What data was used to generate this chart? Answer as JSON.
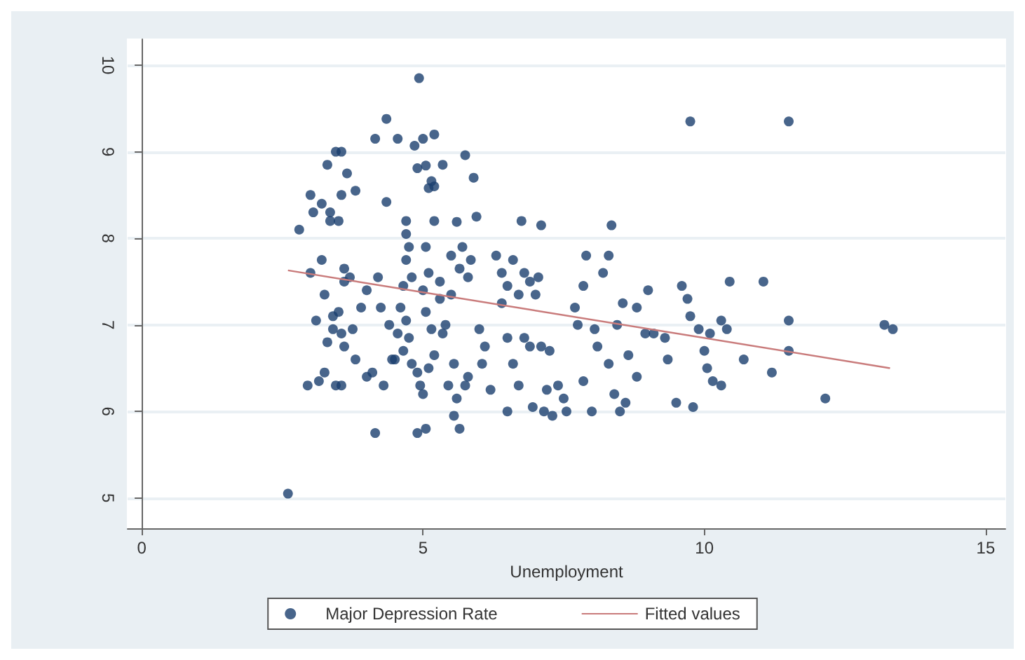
{
  "chart_data": {
    "type": "scatter",
    "xlabel": "Unemployment",
    "xlim": [
      -0.25,
      15.35
    ],
    "xticks": [
      0,
      5,
      10,
      15
    ],
    "ylim": [
      4.65,
      10.3
    ],
    "yticks": [
      5,
      6,
      7,
      8,
      9,
      10
    ],
    "grid": "y",
    "legend": "bottom",
    "series": [
      {
        "name": "Major Depression Rate",
        "type": "scatter",
        "marker": "circle",
        "color": "#1a3f6e",
        "x": [
          2.6,
          3.0,
          3.05,
          2.8,
          3.2,
          3.35,
          3.35,
          3.5,
          3.45,
          3.55,
          3.3,
          3.65,
          3.55,
          3.8,
          3.2,
          3.0,
          3.6,
          3.7,
          3.6,
          3.25,
          3.5,
          3.1,
          3.4,
          3.4,
          3.55,
          3.3,
          3.6,
          3.25,
          3.15,
          2.95,
          3.45,
          3.55,
          3.8,
          3.75,
          3.9,
          4.0,
          4.2,
          4.1,
          4.0,
          4.15,
          4.25,
          4.35,
          4.15,
          4.35,
          4.55,
          4.4,
          4.55,
          4.45,
          4.3,
          4.7,
          4.7,
          4.75,
          4.7,
          4.8,
          4.65,
          4.6,
          4.7,
          4.75,
          4.65,
          4.5,
          4.8,
          4.9,
          4.95,
          5.0,
          4.9,
          5.05,
          4.93,
          4.85,
          5.0,
          5.2,
          4.9,
          5.05,
          5.15,
          5.1,
          5.2,
          5.35,
          5.2,
          5.05,
          5.1,
          5.0,
          5.3,
          5.3,
          5.05,
          5.15,
          5.2,
          5.1,
          5.4,
          5.35,
          5.45,
          5.55,
          5.65,
          5.75,
          5.9,
          5.6,
          5.95,
          5.5,
          5.7,
          5.85,
          5.8,
          5.65,
          5.5,
          5.8,
          5.75,
          5.55,
          5.6,
          6.0,
          6.1,
          6.05,
          6.2,
          6.3,
          6.4,
          6.5,
          6.6,
          6.4,
          6.7,
          6.8,
          6.9,
          6.75,
          7.1,
          7.05,
          7.0,
          6.5,
          6.8,
          6.9,
          7.1,
          7.25,
          6.6,
          6.7,
          6.5,
          6.95,
          7.15,
          7.3,
          7.2,
          7.4,
          7.5,
          7.55,
          7.85,
          8.0,
          7.75,
          7.7,
          7.85,
          7.9,
          8.2,
          8.35,
          8.3,
          8.05,
          8.1,
          8.3,
          8.45,
          8.55,
          8.4,
          8.5,
          8.6,
          8.65,
          8.8,
          8.8,
          8.95,
          9.0,
          9.1,
          9.3,
          9.35,
          9.6,
          9.7,
          9.75,
          9.5,
          9.8,
          9.75,
          9.9,
          10.0,
          10.05,
          10.15,
          10.3,
          10.1,
          10.3,
          10.45,
          10.4,
          10.7,
          11.05,
          11.2,
          11.5,
          11.5,
          11.5,
          12.15,
          13.2,
          13.35
        ],
        "values": [
          5.05,
          8.5,
          8.3,
          8.1,
          8.4,
          8.3,
          8.2,
          8.2,
          9.0,
          9.0,
          8.85,
          8.75,
          8.5,
          8.55,
          7.75,
          7.6,
          7.65,
          7.55,
          7.5,
          7.35,
          7.15,
          7.05,
          7.1,
          6.95,
          6.9,
          6.8,
          6.75,
          6.45,
          6.35,
          6.3,
          6.3,
          6.3,
          6.6,
          6.95,
          7.2,
          7.4,
          7.55,
          6.45,
          6.4,
          5.75,
          7.2,
          8.42,
          9.15,
          9.38,
          9.15,
          7.0,
          6.9,
          6.6,
          6.3,
          8.2,
          8.05,
          7.9,
          7.75,
          7.55,
          7.45,
          7.2,
          7.05,
          6.85,
          6.7,
          6.6,
          6.55,
          6.45,
          6.3,
          6.2,
          5.75,
          5.8,
          9.85,
          9.07,
          9.15,
          9.2,
          8.81,
          8.84,
          8.66,
          8.58,
          8.6,
          8.85,
          8.2,
          7.9,
          7.6,
          7.4,
          7.5,
          7.3,
          7.15,
          6.95,
          6.65,
          6.5,
          7.0,
          6.9,
          6.3,
          5.95,
          5.8,
          8.96,
          8.7,
          8.19,
          8.25,
          7.8,
          7.9,
          7.75,
          7.55,
          7.65,
          7.35,
          6.4,
          6.3,
          6.55,
          6.15,
          6.95,
          6.75,
          6.55,
          6.25,
          7.8,
          7.6,
          7.45,
          7.75,
          7.25,
          7.35,
          7.6,
          7.5,
          8.2,
          8.15,
          7.55,
          7.35,
          6.85,
          6.85,
          6.75,
          6.75,
          6.7,
          6.55,
          6.3,
          6.0,
          6.05,
          6.0,
          5.95,
          6.25,
          6.3,
          6.15,
          6.0,
          6.35,
          6.0,
          7.0,
          7.2,
          7.45,
          7.8,
          7.6,
          8.15,
          7.8,
          6.95,
          6.75,
          6.55,
          7.0,
          7.25,
          6.2,
          6.0,
          6.1,
          6.65,
          6.4,
          7.2,
          6.9,
          7.4,
          6.9,
          6.85,
          6.6,
          7.45,
          7.3,
          7.1,
          6.1,
          6.05,
          9.35,
          6.95,
          6.7,
          6.5,
          6.35,
          6.3,
          6.9,
          7.05,
          7.5,
          6.95,
          6.6,
          7.5,
          6.45,
          9.35,
          6.7,
          7.05,
          6.15,
          7.0,
          6.95
        ]
      },
      {
        "name": "Fitted values",
        "type": "line",
        "color": "#c97b7b",
        "x": [
          2.6,
          13.3
        ],
        "values": [
          7.63,
          6.5
        ]
      }
    ]
  }
}
